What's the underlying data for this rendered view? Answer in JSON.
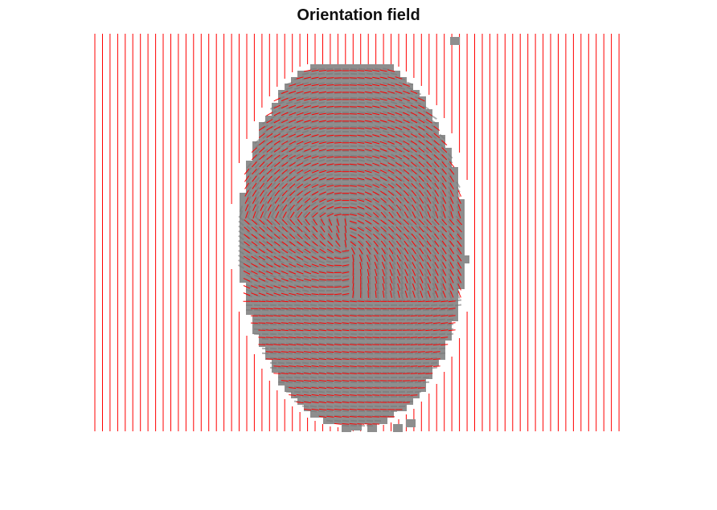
{
  "figure": {
    "title": "Orientation field"
  },
  "colors": {
    "background": "#ffffff",
    "fingerprint_fill": "#8e8e8e",
    "ridge_dark": "#7a7a7a",
    "orientation_line": "#ff0000"
  },
  "rendering": {
    "line_segment_style": "red orientation segments on fingerprint blocks",
    "background_lines": "vertical"
  }
}
